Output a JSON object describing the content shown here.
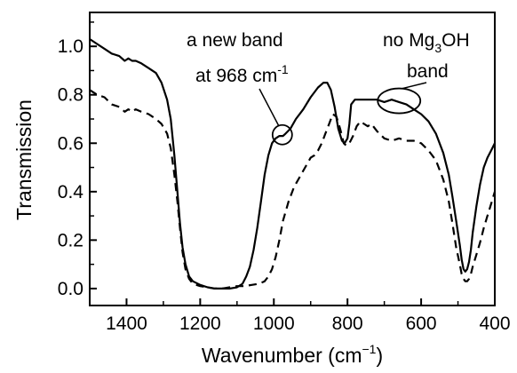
{
  "chart_data": {
    "type": "line",
    "xlabel": "Wavenumber (cm",
    "xlabel_sup": "−1",
    "xlabel_tail": ")",
    "ylabel": "Transmission",
    "xlim": [
      1500,
      400
    ],
    "ylim": [
      -0.07,
      1.14
    ],
    "x_reversed": true,
    "grid": false,
    "x_ticks": [
      1400,
      1200,
      1000,
      800,
      600,
      400
    ],
    "x_tick_labels": [
      "1400",
      "1200",
      "1000",
      "800",
      "600",
      "400"
    ],
    "y_ticks": [
      0.0,
      0.2,
      0.4,
      0.6,
      0.8,
      1.0
    ],
    "y_tick_labels": [
      "0.0",
      "0.2",
      "0.4",
      "0.6",
      "0.8",
      "1.0"
    ],
    "series": [
      {
        "style": "solid",
        "color": "#000000",
        "x": [
          1500,
          1480,
          1460,
          1440,
          1420,
          1405,
          1395,
          1385,
          1375,
          1360,
          1340,
          1320,
          1305,
          1290,
          1280,
          1270,
          1262,
          1255,
          1248,
          1240,
          1230,
          1220,
          1200,
          1180,
          1160,
          1140,
          1120,
          1100,
          1085,
          1075,
          1065,
          1055,
          1045,
          1035,
          1025,
          1015,
          1005,
          995,
          985,
          975,
          968,
          955,
          940,
          920,
          900,
          880,
          865,
          855,
          845,
          835,
          825,
          815,
          808,
          800,
          795,
          790,
          780,
          770,
          765,
          760,
          750,
          740,
          720,
          700,
          680,
          660,
          640,
          620,
          600,
          580,
          560,
          540,
          525,
          515,
          505,
          495,
          490,
          485,
          480,
          475,
          470,
          465,
          460,
          450,
          440,
          430,
          420,
          410,
          400
        ],
        "y": [
          1.03,
          1.01,
          0.99,
          0.97,
          0.96,
          0.94,
          0.95,
          0.94,
          0.94,
          0.93,
          0.91,
          0.89,
          0.85,
          0.78,
          0.7,
          0.55,
          0.4,
          0.27,
          0.17,
          0.1,
          0.05,
          0.03,
          0.015,
          0.005,
          0.0,
          0.0,
          0.0,
          0.005,
          0.02,
          0.05,
          0.09,
          0.16,
          0.25,
          0.36,
          0.47,
          0.55,
          0.6,
          0.62,
          0.63,
          0.63,
          0.64,
          0.66,
          0.7,
          0.74,
          0.79,
          0.83,
          0.85,
          0.85,
          0.82,
          0.75,
          0.66,
          0.61,
          0.6,
          0.62,
          0.68,
          0.76,
          0.78,
          0.78,
          0.78,
          0.78,
          0.78,
          0.78,
          0.78,
          0.77,
          0.78,
          0.77,
          0.76,
          0.74,
          0.72,
          0.69,
          0.64,
          0.56,
          0.47,
          0.38,
          0.28,
          0.18,
          0.12,
          0.08,
          0.07,
          0.08,
          0.11,
          0.16,
          0.23,
          0.34,
          0.43,
          0.5,
          0.54,
          0.57,
          0.6
        ]
      },
      {
        "style": "dashed",
        "color": "#000000",
        "x": [
          1500,
          1480,
          1460,
          1440,
          1420,
          1405,
          1395,
          1385,
          1375,
          1360,
          1340,
          1320,
          1305,
          1290,
          1280,
          1270,
          1262,
          1255,
          1248,
          1240,
          1230,
          1220,
          1200,
          1180,
          1160,
          1140,
          1120,
          1100,
          1080,
          1060,
          1040,
          1025,
          1015,
          1005,
          995,
          985,
          975,
          960,
          945,
          930,
          915,
          900,
          890,
          880,
          870,
          860,
          850,
          840,
          830,
          820,
          810,
          803,
          795,
          785,
          775,
          765,
          755,
          745,
          735,
          720,
          700,
          680,
          660,
          640,
          620,
          600,
          580,
          560,
          540,
          525,
          515,
          505,
          495,
          490,
          485,
          480,
          475,
          470,
          465,
          460,
          450,
          440,
          430,
          420,
          410,
          400
        ],
        "y": [
          0.82,
          0.8,
          0.79,
          0.76,
          0.75,
          0.73,
          0.74,
          0.73,
          0.74,
          0.73,
          0.72,
          0.7,
          0.68,
          0.64,
          0.58,
          0.47,
          0.36,
          0.25,
          0.15,
          0.08,
          0.04,
          0.02,
          0.01,
          0.005,
          0.0,
          0.0,
          0.005,
          0.01,
          0.01,
          0.015,
          0.02,
          0.03,
          0.05,
          0.08,
          0.13,
          0.2,
          0.28,
          0.36,
          0.42,
          0.46,
          0.5,
          0.54,
          0.55,
          0.57,
          0.6,
          0.64,
          0.68,
          0.72,
          0.71,
          0.66,
          0.6,
          0.59,
          0.6,
          0.63,
          0.67,
          0.69,
          0.68,
          0.67,
          0.68,
          0.65,
          0.62,
          0.61,
          0.62,
          0.61,
          0.61,
          0.6,
          0.57,
          0.53,
          0.45,
          0.36,
          0.27,
          0.17,
          0.1,
          0.06,
          0.04,
          0.03,
          0.03,
          0.04,
          0.06,
          0.09,
          0.14,
          0.19,
          0.25,
          0.3,
          0.35,
          0.4
        ]
      }
    ],
    "annotations": [
      {
        "text": "a new band",
        "marker": "circle",
        "marker_x": 977,
        "marker_y": 0.635
      },
      {
        "text": "at 968 cm",
        "sup": "-1"
      },
      {
        "text": "no Mg",
        "sub": "3",
        "tail": "OH",
        "marker": "ellipse",
        "marker_x": 660,
        "marker_y": 0.775
      },
      {
        "text": "band"
      }
    ]
  }
}
